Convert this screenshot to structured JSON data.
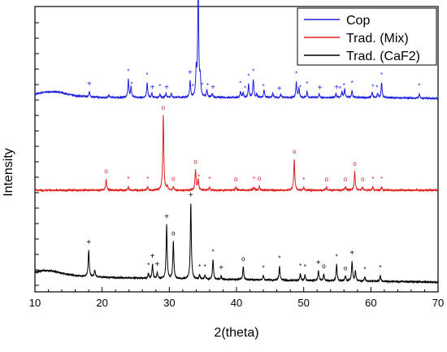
{
  "chart_data": {
    "type": "line",
    "xlabel": "2(theta)",
    "ylabel": "Intensity",
    "xlim": [
      10,
      70
    ],
    "x_ticks": [
      10,
      20,
      30,
      40,
      50,
      60,
      70
    ],
    "grid": false,
    "legend_position": "top-right",
    "series": [
      {
        "name": "Cop",
        "color": "#1f1fe0",
        "offset": 225,
        "background": [
          [
            10,
            8
          ],
          [
            11,
            10
          ],
          [
            12,
            11
          ],
          [
            13,
            11
          ],
          [
            14,
            10
          ],
          [
            15,
            8
          ],
          [
            16,
            6
          ],
          [
            18,
            5
          ],
          [
            20,
            4
          ],
          [
            25,
            4
          ],
          [
            30,
            4
          ],
          [
            40,
            4
          ],
          [
            50,
            4
          ],
          [
            60,
            4
          ],
          [
            70,
            3
          ]
        ],
        "peaks": [
          [
            18.1,
            6
          ],
          [
            21.0,
            3
          ],
          [
            23.9,
            22
          ],
          [
            24.3,
            13
          ],
          [
            26.7,
            18
          ],
          [
            27.4,
            5
          ],
          [
            28.6,
            4
          ],
          [
            29.5,
            5
          ],
          [
            30.3,
            5
          ],
          [
            33.1,
            20
          ],
          [
            34.0,
            31
          ],
          [
            34.3,
            135
          ],
          [
            34.6,
            22
          ],
          [
            35.6,
            9
          ],
          [
            36.4,
            5
          ],
          [
            40.6,
            7
          ],
          [
            41.0,
            6
          ],
          [
            41.8,
            16
          ],
          [
            42.5,
            22
          ],
          [
            43.0,
            4
          ],
          [
            44.1,
            9
          ],
          [
            45.4,
            5
          ],
          [
            46.6,
            4
          ],
          [
            48.9,
            19
          ],
          [
            49.3,
            11
          ],
          [
            50.5,
            7
          ],
          [
            52.3,
            4
          ],
          [
            54.8,
            5
          ],
          [
            55.7,
            7
          ],
          [
            56.1,
            10
          ],
          [
            57.2,
            8
          ],
          [
            60.2,
            7
          ],
          [
            61.0,
            5
          ],
          [
            61.6,
            18
          ],
          [
            67.2,
            5
          ]
        ],
        "markers": [
          [
            18.1,
            "+"
          ],
          [
            23.9,
            "*"
          ],
          [
            24.4,
            "*"
          ],
          [
            26.7,
            "*"
          ],
          [
            27.5,
            "+"
          ],
          [
            28.6,
            "*"
          ],
          [
            29.6,
            "+"
          ],
          [
            33.1,
            "+"
          ],
          [
            33.5,
            "*"
          ],
          [
            34.3,
            "*"
          ],
          [
            34.9,
            "*"
          ],
          [
            35.7,
            "*"
          ],
          [
            36.5,
            "+"
          ],
          [
            40.6,
            "*"
          ],
          [
            41.3,
            "*"
          ],
          [
            41.8,
            "*"
          ],
          [
            42.5,
            "*"
          ],
          [
            44.0,
            "*"
          ],
          [
            46.4,
            "+"
          ],
          [
            48.9,
            "*"
          ],
          [
            49.5,
            "*"
          ],
          [
            50.5,
            "*"
          ],
          [
            52.4,
            "+"
          ],
          [
            54.9,
            "+"
          ],
          [
            55.4,
            "*"
          ],
          [
            56.0,
            "*"
          ],
          [
            57.2,
            "*"
          ],
          [
            60.3,
            "*"
          ],
          [
            60.9,
            "*"
          ],
          [
            61.6,
            "*"
          ],
          [
            67.2,
            "*"
          ]
        ]
      },
      {
        "name": "Trad. (Mix)",
        "color": "#e02020",
        "offset": 112,
        "background": [
          [
            10,
            3
          ],
          [
            20,
            3
          ],
          [
            30,
            3
          ],
          [
            40,
            3
          ],
          [
            50,
            3
          ],
          [
            60,
            3
          ],
          [
            70,
            3
          ]
        ],
        "peaks": [
          [
            20.6,
            14
          ],
          [
            23.9,
            4
          ],
          [
            26.8,
            4
          ],
          [
            29.1,
            92
          ],
          [
            29.7,
            5
          ],
          [
            30.6,
            4
          ],
          [
            33.9,
            25
          ],
          [
            34.3,
            13
          ],
          [
            36.0,
            4
          ],
          [
            39.9,
            4
          ],
          [
            42.6,
            4
          ],
          [
            43.4,
            5
          ],
          [
            48.6,
            38
          ],
          [
            50.0,
            3
          ],
          [
            53.4,
            4
          ],
          [
            56.2,
            4
          ],
          [
            57.6,
            23
          ],
          [
            58.8,
            4
          ],
          [
            60.3,
            4
          ],
          [
            61.6,
            4
          ]
        ],
        "markers": [
          [
            20.6,
            "o"
          ],
          [
            23.9,
            "*"
          ],
          [
            26.8,
            "*"
          ],
          [
            29.1,
            "o"
          ],
          [
            30.6,
            "o"
          ],
          [
            33.9,
            "o"
          ],
          [
            34.4,
            "*"
          ],
          [
            36.0,
            "*"
          ],
          [
            39.9,
            "o"
          ],
          [
            42.6,
            "*"
          ],
          [
            43.4,
            "o"
          ],
          [
            48.6,
            "o"
          ],
          [
            50.0,
            "*"
          ],
          [
            53.4,
            "o"
          ],
          [
            56.2,
            "o"
          ],
          [
            57.6,
            "o"
          ],
          [
            58.8,
            "o"
          ],
          [
            60.3,
            "*"
          ],
          [
            61.6,
            "*"
          ]
        ]
      },
      {
        "name": "Trad. (CaF2)",
        "color": "#000000",
        "offset": 0,
        "background": [
          [
            10,
            14
          ],
          [
            11,
            16
          ],
          [
            12,
            16
          ],
          [
            13,
            15
          ],
          [
            14,
            13
          ],
          [
            16,
            10
          ],
          [
            18,
            9
          ],
          [
            20,
            8
          ],
          [
            25,
            7
          ],
          [
            30,
            6
          ],
          [
            40,
            5
          ],
          [
            50,
            4
          ],
          [
            60,
            3
          ],
          [
            70,
            2
          ]
        ],
        "peaks": [
          [
            18.0,
            32
          ],
          [
            18.9,
            8
          ],
          [
            26.9,
            6
          ],
          [
            27.5,
            17
          ],
          [
            28.2,
            7
          ],
          [
            29.6,
            66
          ],
          [
            30.6,
            46
          ],
          [
            33.2,
            93
          ],
          [
            34.5,
            5
          ],
          [
            35.3,
            5
          ],
          [
            36.5,
            24
          ],
          [
            37.7,
            4
          ],
          [
            41.0,
            16
          ],
          [
            44.0,
            5
          ],
          [
            46.4,
            17
          ],
          [
            49.5,
            8
          ],
          [
            50.2,
            7
          ],
          [
            52.2,
            12
          ],
          [
            53.0,
            8
          ],
          [
            54.9,
            20
          ],
          [
            56.2,
            6
          ],
          [
            57.2,
            24
          ],
          [
            57.7,
            12
          ],
          [
            59.1,
            5
          ],
          [
            61.4,
            7
          ]
        ],
        "markers": [
          [
            18.0,
            "+"
          ],
          [
            26.9,
            "*"
          ],
          [
            27.5,
            "+"
          ],
          [
            28.2,
            "+"
          ],
          [
            29.6,
            "+"
          ],
          [
            30.6,
            "o"
          ],
          [
            33.2,
            "+"
          ],
          [
            34.5,
            "*"
          ],
          [
            35.3,
            "*"
          ],
          [
            36.5,
            "*"
          ],
          [
            37.7,
            "+"
          ],
          [
            41.0,
            "o"
          ],
          [
            44.0,
            "*"
          ],
          [
            46.4,
            "*"
          ],
          [
            49.5,
            "*"
          ],
          [
            50.2,
            "*"
          ],
          [
            52.2,
            "+"
          ],
          [
            53.0,
            "o"
          ],
          [
            54.9,
            "*"
          ],
          [
            56.2,
            "o"
          ],
          [
            57.2,
            "+"
          ],
          [
            59.1,
            "*"
          ],
          [
            61.4,
            "*"
          ]
        ]
      }
    ]
  }
}
